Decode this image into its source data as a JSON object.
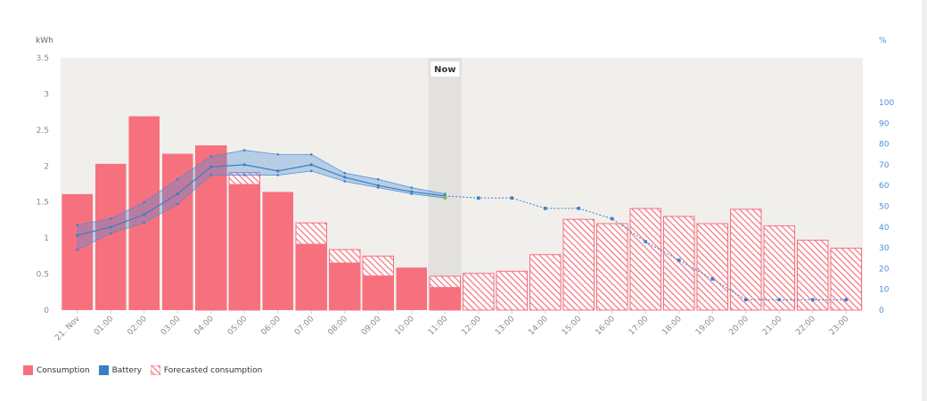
{
  "chart_data": {
    "type": "bar",
    "left_axis": {
      "unit": "kWh",
      "ylim": [
        0,
        3.5
      ],
      "ticks": [
        0,
        0.5,
        1,
        1.5,
        2,
        2.5,
        3,
        3.5
      ]
    },
    "right_axis": {
      "unit": "%",
      "ylim": [
        0,
        100
      ],
      "ticks": [
        0,
        10,
        20,
        30,
        40,
        50,
        60,
        70,
        80,
        90,
        100
      ]
    },
    "categories": [
      "21. Nov",
      "01:00",
      "02:00",
      "03:00",
      "04:00",
      "05:00",
      "06:00",
      "07:00",
      "08:00",
      "09:00",
      "10:00",
      "11:00",
      "12:00",
      "13:00",
      "14:00",
      "15:00",
      "16:00",
      "17:00",
      "18:00",
      "19:00",
      "20:00",
      "21:00",
      "22:00",
      "23:00"
    ],
    "now": {
      "label": "Now",
      "index": 11
    },
    "series": [
      {
        "name": "Consumption",
        "color": "#f7707e",
        "values": [
          1.61,
          2.03,
          2.69,
          2.17,
          2.28,
          1.75,
          1.64,
          0.92,
          0.66,
          0.48,
          0.59,
          0.32,
          null,
          null,
          null,
          null,
          null,
          null,
          null,
          null,
          null,
          null,
          null,
          null
        ]
      },
      {
        "name": "Forecasted consumption",
        "color": "#f7707e",
        "values": [
          null,
          null,
          null,
          null,
          2.28,
          1.91,
          null,
          1.21,
          0.84,
          0.75,
          null,
          0.47,
          0.51,
          0.54,
          0.77,
          1.26,
          1.2,
          1.41,
          1.3,
          1.2,
          1.4,
          1.17,
          0.97,
          0.86
        ]
      },
      {
        "name": "Battery",
        "color": "#4a90d9",
        "values": [
          36,
          40,
          46,
          56,
          69,
          70,
          67,
          70,
          64,
          60,
          57,
          55,
          null,
          null,
          null,
          null,
          null,
          null,
          null,
          null,
          null,
          null,
          null,
          null
        ],
        "band_low": [
          29,
          37,
          42,
          51,
          65,
          65,
          65,
          67,
          62,
          59,
          56,
          54,
          null,
          null,
          null,
          null,
          null,
          null,
          null,
          null,
          null,
          null,
          null,
          null
        ],
        "band_high": [
          41,
          44,
          52,
          63,
          74,
          77,
          75,
          75,
          66,
          63,
          59,
          56,
          null,
          null,
          null,
          null,
          null,
          null,
          null,
          null,
          null,
          null,
          null,
          null
        ],
        "forecast": [
          null,
          null,
          null,
          null,
          null,
          null,
          null,
          null,
          null,
          null,
          null,
          55,
          54,
          54,
          49,
          49,
          44,
          33,
          24,
          15,
          5,
          5,
          5,
          5
        ]
      }
    ],
    "legend": [
      "Consumption",
      "Battery",
      "Forecasted consumption"
    ],
    "grid": false,
    "legend_position": "bottom-left"
  }
}
